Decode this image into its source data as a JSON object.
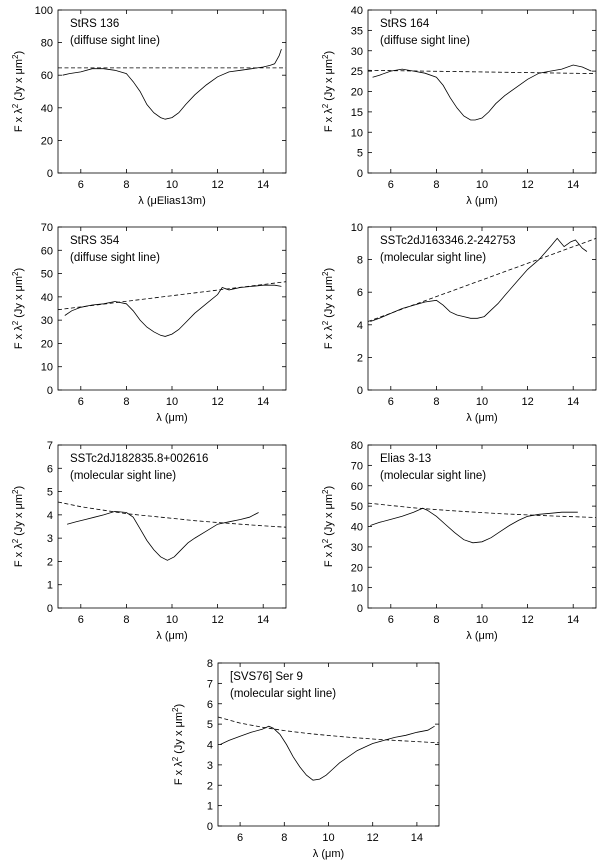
{
  "figure": {
    "common": {
      "ylabel_prefix": "F x λ",
      "ylabel_exp": "2",
      "ylabel_mid": " (Jy x μm",
      "ylabel_exp2": "2",
      "ylabel_suffix": ")"
    }
  },
  "chart_data": [
    {
      "type": "line",
      "xlabel": "λ (μElias13m)",
      "xlim": [
        5,
        15
      ],
      "ylim": [
        0,
        100
      ],
      "xticks": [
        6,
        8,
        10,
        12,
        14
      ],
      "yticks": [
        0,
        20,
        40,
        60,
        80,
        100
      ],
      "annotation": [
        "StRS 136",
        "(diffuse sight line)"
      ],
      "series": [
        {
          "name": "spectrum",
          "style": "solid",
          "x": [
            5.2,
            5.5,
            6.0,
            6.5,
            7.0,
            7.5,
            8.0,
            8.3,
            8.6,
            8.9,
            9.2,
            9.5,
            9.7,
            10.0,
            10.3,
            10.6,
            11.0,
            11.5,
            12.0,
            12.5,
            13.0,
            13.5,
            14.0,
            14.3,
            14.5,
            14.7,
            14.8
          ],
          "y": [
            60,
            61,
            62,
            64,
            64,
            63,
            61,
            56,
            50,
            42,
            37,
            34,
            33,
            34,
            37,
            42,
            48,
            54,
            59,
            62,
            63,
            64,
            65,
            66,
            67,
            72,
            76
          ]
        },
        {
          "name": "continuum",
          "style": "dashed",
          "x": [
            5.0,
            15.0
          ],
          "y": [
            64.5,
            64.5
          ]
        }
      ]
    },
    {
      "type": "line",
      "xlabel": "λ (μm)",
      "xlim": [
        5,
        15
      ],
      "ylim": [
        0,
        40
      ],
      "xticks": [
        6,
        8,
        10,
        12,
        14
      ],
      "yticks": [
        0,
        5,
        10,
        15,
        20,
        25,
        30,
        35,
        40
      ],
      "annotation": [
        "StRS 164",
        "(diffuse sight line)"
      ],
      "series": [
        {
          "name": "spectrum",
          "style": "solid",
          "x": [
            5.2,
            5.5,
            6.0,
            6.5,
            7.0,
            7.5,
            8.0,
            8.3,
            8.6,
            8.9,
            9.2,
            9.5,
            9.7,
            10.0,
            10.3,
            10.6,
            11.0,
            11.5,
            12.0,
            12.5,
            13.0,
            13.5,
            14.0,
            14.4,
            14.8
          ],
          "y": [
            23.5,
            24,
            25,
            25.5,
            25,
            24.5,
            23.5,
            21.5,
            18.5,
            16,
            14,
            13,
            13,
            13.5,
            15,
            17,
            19,
            21,
            23,
            24.5,
            25,
            25.5,
            26.5,
            26,
            25
          ]
        },
        {
          "name": "continuum",
          "style": "dashed",
          "x": [
            5.0,
            15.0
          ],
          "y": [
            25.2,
            24.4
          ]
        }
      ]
    },
    {
      "type": "line",
      "xlabel": "λ (μm)",
      "xlim": [
        5,
        15
      ],
      "ylim": [
        0,
        70
      ],
      "xticks": [
        6,
        8,
        10,
        12,
        14
      ],
      "yticks": [
        0,
        10,
        20,
        30,
        40,
        50,
        60,
        70
      ],
      "annotation": [
        "StRS 354",
        "(diffuse sight line)"
      ],
      "series": [
        {
          "name": "spectrum",
          "style": "solid",
          "x": [
            5.3,
            5.6,
            6.0,
            6.5,
            7.0,
            7.5,
            8.0,
            8.3,
            8.6,
            8.9,
            9.2,
            9.5,
            9.7,
            10.0,
            10.3,
            10.6,
            11.0,
            11.5,
            12.0,
            12.2,
            12.5,
            13.0,
            13.5,
            14.0,
            14.5,
            14.8
          ],
          "y": [
            32,
            34,
            35.5,
            36.5,
            37,
            38,
            37,
            34,
            30,
            27,
            25,
            23.5,
            23,
            24,
            26,
            29,
            33,
            37,
            41,
            44,
            43,
            44,
            44.5,
            45,
            45,
            44.5
          ]
        },
        {
          "name": "continuum",
          "style": "dashed",
          "x": [
            5.0,
            15.0
          ],
          "y": [
            34.5,
            46.5
          ]
        }
      ]
    },
    {
      "type": "line",
      "xlabel": "λ (μm)",
      "xlim": [
        5,
        15
      ],
      "ylim": [
        0,
        10
      ],
      "xticks": [
        6,
        8,
        10,
        12,
        14
      ],
      "yticks": [
        0,
        2,
        4,
        6,
        8,
        10
      ],
      "annotation": [
        "SSTc2dJ163346.2-242753",
        "(molecular sight line)"
      ],
      "series": [
        {
          "name": "spectrum",
          "style": "solid",
          "x": [
            5.1,
            5.5,
            6.0,
            6.5,
            7.0,
            7.5,
            8.0,
            8.3,
            8.6,
            8.9,
            9.2,
            9.5,
            9.8,
            10.1,
            10.4,
            10.7,
            11.0,
            11.5,
            12.0,
            12.5,
            13.0,
            13.3,
            13.6,
            13.9,
            14.1,
            14.4,
            14.6
          ],
          "y": [
            4.2,
            4.4,
            4.7,
            5.0,
            5.2,
            5.4,
            5.5,
            5.2,
            4.8,
            4.6,
            4.5,
            4.4,
            4.4,
            4.5,
            4.9,
            5.3,
            5.8,
            6.6,
            7.4,
            8.0,
            8.8,
            9.3,
            8.8,
            9.1,
            9.2,
            8.7,
            8.5
          ]
        },
        {
          "name": "continuum",
          "style": "dashed",
          "x": [
            5.0,
            15.0
          ],
          "y": [
            4.2,
            9.3
          ]
        }
      ]
    },
    {
      "type": "line",
      "xlabel": "λ (μm)",
      "xlim": [
        5,
        15
      ],
      "ylim": [
        0,
        7
      ],
      "xticks": [
        6,
        8,
        10,
        12,
        14
      ],
      "yticks": [
        0,
        1,
        2,
        3,
        4,
        5,
        6,
        7
      ],
      "annotation": [
        "SSTc2dJ182835.8+002616",
        "(molecular sight line)"
      ],
      "series": [
        {
          "name": "spectrum",
          "style": "solid",
          "x": [
            5.4,
            5.8,
            6.2,
            6.6,
            7.0,
            7.5,
            8.0,
            8.3,
            8.6,
            8.9,
            9.2,
            9.5,
            9.8,
            10.1,
            10.4,
            10.7,
            11.0,
            11.5,
            12.0,
            12.5,
            13.0,
            13.4,
            13.8
          ],
          "y": [
            3.6,
            3.7,
            3.8,
            3.9,
            4.0,
            4.15,
            4.1,
            3.9,
            3.4,
            2.9,
            2.5,
            2.2,
            2.05,
            2.2,
            2.5,
            2.8,
            3.0,
            3.3,
            3.6,
            3.7,
            3.8,
            3.9,
            4.1
          ]
        },
        {
          "name": "continuum",
          "style": "dashed",
          "x": [
            5.0,
            6.0,
            7.0,
            8.0,
            9.0,
            10.0,
            11.0,
            12.0,
            13.0,
            14.0,
            15.0
          ],
          "y": [
            4.55,
            4.35,
            4.2,
            4.05,
            3.95,
            3.85,
            3.75,
            3.67,
            3.6,
            3.53,
            3.47
          ]
        }
      ]
    },
    {
      "type": "line",
      "xlabel": "λ (μm)",
      "xlim": [
        5,
        15
      ],
      "ylim": [
        0,
        80
      ],
      "xticks": [
        6,
        8,
        10,
        12,
        14
      ],
      "yticks": [
        0,
        10,
        20,
        30,
        40,
        50,
        60,
        70,
        80
      ],
      "annotation": [
        "Elias 3-13",
        "(molecular sight line)"
      ],
      "series": [
        {
          "name": "spectrum",
          "style": "solid",
          "x": [
            5.1,
            5.5,
            6.0,
            6.5,
            7.0,
            7.4,
            7.6,
            8.0,
            8.4,
            8.8,
            9.2,
            9.6,
            10.0,
            10.4,
            10.8,
            11.2,
            11.6,
            12.0,
            12.5,
            13.0,
            13.5,
            14.0,
            14.2
          ],
          "y": [
            40.5,
            42,
            43.5,
            45,
            47,
            49,
            48,
            45,
            41,
            37,
            33.5,
            32,
            32.5,
            34.5,
            37.5,
            40.5,
            43,
            45,
            46,
            46.5,
            47,
            47,
            47
          ]
        },
        {
          "name": "continuum",
          "style": "dashed",
          "x": [
            5.0,
            6.0,
            7.0,
            8.0,
            9.0,
            10.0,
            11.0,
            12.0,
            13.0,
            14.0,
            15.0
          ],
          "y": [
            51.5,
            50.3,
            49.2,
            48.3,
            47.5,
            46.8,
            46.2,
            45.7,
            45.2,
            44.8,
            44.4
          ]
        }
      ]
    },
    {
      "type": "line",
      "xlabel": "λ (μm)",
      "xlim": [
        5,
        15
      ],
      "ylim": [
        0,
        8
      ],
      "xticks": [
        6,
        8,
        10,
        12,
        14
      ],
      "yticks": [
        0,
        1,
        2,
        3,
        4,
        5,
        6,
        7,
        8
      ],
      "annotation": [
        "[SVS76] Ser 9",
        "(molecular sight line)"
      ],
      "series": [
        {
          "name": "spectrum",
          "style": "solid",
          "x": [
            5.1,
            5.5,
            6.0,
            6.5,
            7.0,
            7.3,
            7.5,
            7.8,
            8.1,
            8.4,
            8.7,
            9.0,
            9.3,
            9.6,
            9.9,
            10.2,
            10.5,
            10.9,
            11.3,
            11.7,
            12.0,
            12.5,
            13.0,
            13.5,
            14.0,
            14.5,
            14.8
          ],
          "y": [
            4.0,
            4.2,
            4.4,
            4.6,
            4.75,
            4.9,
            4.8,
            4.5,
            4.0,
            3.4,
            2.9,
            2.5,
            2.25,
            2.3,
            2.5,
            2.8,
            3.1,
            3.4,
            3.7,
            3.9,
            4.05,
            4.2,
            4.35,
            4.45,
            4.6,
            4.7,
            4.9
          ]
        },
        {
          "name": "continuum",
          "style": "dashed",
          "x": [
            5.0,
            6.0,
            7.0,
            8.0,
            9.0,
            10.0,
            11.0,
            12.0,
            13.0,
            14.0,
            15.0
          ],
          "y": [
            5.35,
            5.05,
            4.85,
            4.68,
            4.55,
            4.44,
            4.35,
            4.27,
            4.2,
            4.14,
            4.08
          ]
        }
      ]
    }
  ]
}
